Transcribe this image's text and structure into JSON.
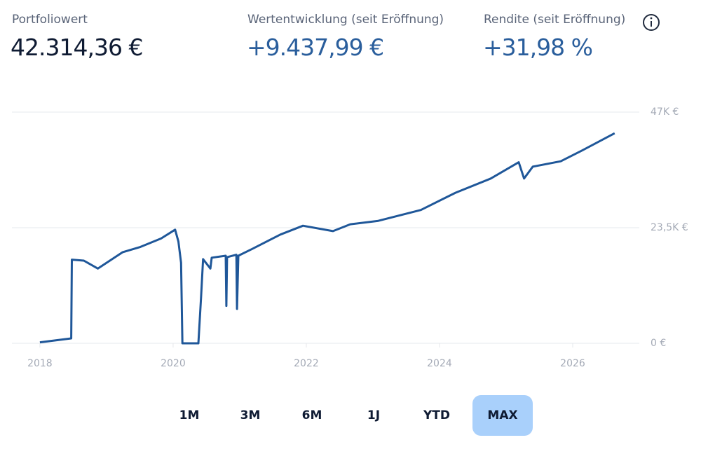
{
  "header": {
    "stats": [
      {
        "label": "Portfoliowert",
        "value": "42.314,36 €"
      },
      {
        "label": "Wertentwicklung (seit Eröffnung)",
        "value": "+9.437,99 €"
      },
      {
        "label": "Rendite (seit Eröffnung)",
        "value": "+31,98 %"
      }
    ]
  },
  "chart_data": {
    "type": "line",
    "x": [
      2018.0,
      2018.47,
      2018.48,
      2018.66,
      2018.87,
      2019.24,
      2019.51,
      2019.82,
      2020.03,
      2020.08,
      2020.12,
      2020.14,
      2020.38,
      2020.42,
      2020.45,
      2020.56,
      2020.58,
      2020.79,
      2020.8,
      2020.81,
      2020.95,
      2020.96,
      2020.98,
      2021.19,
      2021.61,
      2021.95,
      2022.4,
      2022.66,
      2023.08,
      2023.72,
      2024.24,
      2024.77,
      2025.19,
      2025.27,
      2025.4,
      2025.82,
      2026.14,
      2026.63
    ],
    "series": [
      {
        "color": "#1f5799",
        "values": [
          200,
          1000,
          17000,
          16800,
          15200,
          18500,
          19600,
          21300,
          23100,
          20700,
          16400,
          0,
          0,
          9300,
          17100,
          15200,
          17400,
          17800,
          7600,
          17500,
          18000,
          7000,
          17800,
          19200,
          22100,
          23900,
          22800,
          24200,
          24900,
          27100,
          30600,
          33500,
          36800,
          33500,
          35900,
          37000,
          39200,
          42700
        ]
      }
    ],
    "xlim": [
      2017.58,
      2027.0
    ],
    "xticks": [
      2018,
      2020,
      2022,
      2024,
      2026
    ],
    "ylim": [
      0,
      47000
    ],
    "yticks": [
      {
        "value": 0,
        "label": "0 €"
      },
      {
        "value": 23500,
        "label": "23,5K €"
      },
      {
        "value": 47000,
        "label": "47K €"
      }
    ],
    "grid": true
  },
  "range_buttons": [
    "1M",
    "3M",
    "6M",
    "1J",
    "YTD",
    "MAX"
  ],
  "selected_range": "MAX"
}
